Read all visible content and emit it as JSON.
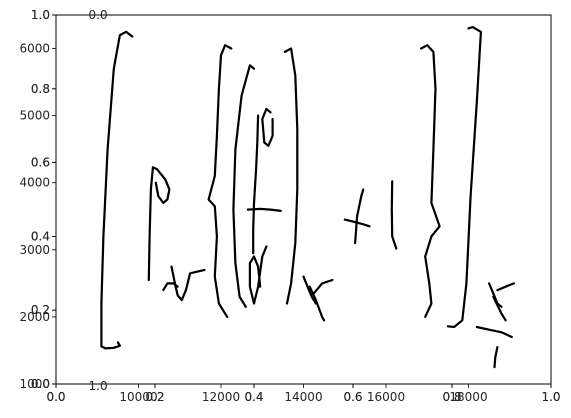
{
  "chart_data": {
    "type": "line",
    "description_visible": "handwritten math expression strokes on overlapping matplotlib axes",
    "axes": [
      {
        "id": "main",
        "xlim": [
          8000,
          20000
        ],
        "ylim": [
          1000,
          6500
        ],
        "xticks": [
          10000,
          12000,
          14000,
          16000,
          18000
        ],
        "xtick_labels": [
          "10000",
          "12000",
          "14000",
          "16000",
          "18000"
        ],
        "yticks": [
          1000,
          2000,
          3000,
          4000,
          5000,
          6000
        ],
        "ytick_labels": [
          "1000",
          "2000",
          "3000",
          "4000",
          "5000",
          "6000"
        ]
      },
      {
        "id": "overlay-a",
        "xlim": [
          0,
          1
        ],
        "ylim": [
          0,
          1
        ],
        "xticks": [
          0.0,
          0.2,
          0.4,
          0.6,
          0.8,
          1.0
        ],
        "xtick_labels": [
          "0.0",
          "0.2",
          "0.4",
          "0.6",
          "0.8",
          "1.0"
        ],
        "yticks": [
          0.0,
          0.2,
          0.4,
          0.6,
          0.8,
          1.0
        ],
        "ytick_labels": [
          "0.0",
          "0.2",
          "0.4",
          "0.6",
          "0.8",
          "1.0"
        ]
      },
      {
        "id": "overlay-b",
        "xlim": [
          0,
          1
        ],
        "ylim": [
          0,
          1
        ],
        "xticks": [
          0.0,
          0.2,
          0.4,
          0.6,
          0.8,
          1.0
        ],
        "xtick_labels": [
          "0.0",
          "0.2",
          "0.4",
          "0.6",
          "0.8",
          "1.0"
        ],
        "yticks": [
          0.0,
          0.2,
          0.4,
          0.6,
          0.8,
          1.0
        ],
        "ytick_labels": [
          "0.0",
          "0.2",
          "0.4",
          "0.6",
          "0.8",
          "1.0"
        ]
      }
    ],
    "stray_labels": [
      "0.0",
      "1.0"
    ],
    "strokes": [
      {
        "name": "outer-left-bracket",
        "points": [
          [
            9850,
            6180
          ],
          [
            9700,
            6250
          ],
          [
            9550,
            6200
          ],
          [
            9400,
            5700
          ],
          [
            9250,
            4500
          ],
          [
            9150,
            3200
          ],
          [
            9100,
            2200
          ],
          [
            9100,
            1560
          ],
          [
            9200,
            1530
          ],
          [
            9400,
            1540
          ],
          [
            9550,
            1570
          ],
          [
            9500,
            1620
          ]
        ]
      },
      {
        "name": "rho-stem",
        "points": [
          [
            10250,
            2550
          ],
          [
            10270,
            3200
          ],
          [
            10300,
            3900
          ],
          [
            10350,
            4230
          ],
          [
            10450,
            4200
          ],
          [
            10650,
            4050
          ],
          [
            10750,
            3900
          ],
          [
            10700,
            3750
          ],
          [
            10600,
            3700
          ],
          [
            10480,
            3800
          ],
          [
            10420,
            4000
          ]
        ]
      },
      {
        "name": "subscript-r-1a",
        "points": [
          [
            10600,
            2400
          ],
          [
            10700,
            2500
          ],
          [
            10850,
            2500
          ],
          [
            10950,
            2450
          ]
        ]
      },
      {
        "name": "subscript-r-1b",
        "points": [
          [
            10800,
            2750
          ],
          [
            10850,
            2600
          ],
          [
            10900,
            2450
          ],
          [
            10950,
            2320
          ],
          [
            11050,
            2250
          ],
          [
            11150,
            2400
          ],
          [
            11250,
            2650
          ],
          [
            11600,
            2700
          ]
        ]
      },
      {
        "name": "left-brace",
        "points": [
          [
            12250,
            6000
          ],
          [
            12100,
            6050
          ],
          [
            12000,
            5900
          ],
          [
            11950,
            5400
          ],
          [
            11900,
            4700
          ],
          [
            11850,
            4100
          ],
          [
            11700,
            3750
          ],
          [
            11850,
            3650
          ],
          [
            11900,
            3200
          ],
          [
            11850,
            2600
          ],
          [
            11950,
            2200
          ],
          [
            12100,
            2050
          ],
          [
            12150,
            2000
          ]
        ]
      },
      {
        "name": "left-paren",
        "points": [
          [
            12800,
            5700
          ],
          [
            12700,
            5750
          ],
          [
            12500,
            5300
          ],
          [
            12350,
            4500
          ],
          [
            12300,
            3600
          ],
          [
            12350,
            2800
          ],
          [
            12450,
            2300
          ],
          [
            12600,
            2150
          ]
        ]
      },
      {
        "name": "inner-l",
        "points": [
          [
            12900,
            5000
          ],
          [
            12880,
            4600
          ],
          [
            12850,
            4200
          ],
          [
            12800,
            3700
          ],
          [
            12780,
            3300
          ],
          [
            12780,
            2950
          ]
        ]
      },
      {
        "name": "inner-loop",
        "points": [
          [
            13200,
            5050
          ],
          [
            13100,
            5100
          ],
          [
            13000,
            4950
          ],
          [
            13050,
            4600
          ],
          [
            13150,
            4550
          ],
          [
            13250,
            4700
          ],
          [
            13250,
            4950
          ]
        ]
      },
      {
        "name": "fraction-bar",
        "points": [
          [
            12650,
            3600
          ],
          [
            12950,
            3610
          ],
          [
            13200,
            3600
          ],
          [
            13450,
            3580
          ]
        ]
      },
      {
        "name": "sigma-loop",
        "points": [
          [
            13100,
            3050
          ],
          [
            13000,
            2900
          ],
          [
            12900,
            2450
          ],
          [
            12800,
            2200
          ],
          [
            12700,
            2450
          ],
          [
            12700,
            2800
          ],
          [
            12800,
            2900
          ],
          [
            12900,
            2750
          ],
          [
            12950,
            2450
          ]
        ]
      },
      {
        "name": "right-paren",
        "points": [
          [
            13550,
            5950
          ],
          [
            13700,
            6000
          ],
          [
            13800,
            5600
          ],
          [
            13850,
            4800
          ],
          [
            13850,
            3900
          ],
          [
            13800,
            3100
          ],
          [
            13700,
            2500
          ],
          [
            13600,
            2200
          ]
        ]
      },
      {
        "name": "subscript-r-2a",
        "points": [
          [
            14000,
            2600
          ],
          [
            14100,
            2450
          ],
          [
            14200,
            2300
          ],
          [
            14300,
            2200
          ]
        ]
      },
      {
        "name": "subscript-r-2b",
        "points": [
          [
            14150,
            2450
          ],
          [
            14300,
            2250
          ],
          [
            14450,
            2000
          ],
          [
            14500,
            1950
          ]
        ]
      },
      {
        "name": "subscript-r-2c",
        "points": [
          [
            14250,
            2350
          ],
          [
            14450,
            2500
          ],
          [
            14700,
            2550
          ]
        ]
      },
      {
        "name": "plus-vertical",
        "points": [
          [
            15250,
            3100
          ],
          [
            15300,
            3500
          ],
          [
            15400,
            3800
          ],
          [
            15450,
            3900
          ]
        ]
      },
      {
        "name": "plus-horizontal",
        "points": [
          [
            15000,
            3450
          ],
          [
            15200,
            3420
          ],
          [
            15450,
            3380
          ],
          [
            15600,
            3350
          ]
        ]
      },
      {
        "name": "one-stroke",
        "points": [
          [
            16150,
            4020
          ],
          [
            16140,
            3600
          ],
          [
            16150,
            3200
          ],
          [
            16250,
            3020
          ]
        ]
      },
      {
        "name": "right-brace",
        "points": [
          [
            16850,
            6000
          ],
          [
            17000,
            6050
          ],
          [
            17150,
            5950
          ],
          [
            17200,
            5400
          ],
          [
            17150,
            4500
          ],
          [
            17100,
            3700
          ],
          [
            17300,
            3350
          ],
          [
            17100,
            3200
          ],
          [
            16950,
            2900
          ],
          [
            17050,
            2500
          ],
          [
            17100,
            2200
          ],
          [
            16950,
            2000
          ]
        ]
      },
      {
        "name": "outer-right-bracket",
        "points": [
          [
            18000,
            6300
          ],
          [
            18100,
            6320
          ],
          [
            18300,
            6250
          ],
          [
            18200,
            5200
          ],
          [
            18050,
            3800
          ],
          [
            17950,
            2500
          ],
          [
            17850,
            1950
          ],
          [
            17650,
            1850
          ],
          [
            17500,
            1860
          ]
        ]
      },
      {
        "name": "subscript-r-3a",
        "points": [
          [
            18500,
            2500
          ],
          [
            18600,
            2350
          ],
          [
            18700,
            2200
          ],
          [
            18800,
            2150
          ]
        ]
      },
      {
        "name": "subscript-r-3b",
        "points": [
          [
            18600,
            2300
          ],
          [
            18800,
            2050
          ],
          [
            18900,
            1950
          ]
        ]
      },
      {
        "name": "subscript-r-3c",
        "points": [
          [
            18700,
            2400
          ],
          [
            18900,
            2450
          ],
          [
            19100,
            2500
          ]
        ]
      },
      {
        "name": "underscore-bar",
        "points": [
          [
            18200,
            1850
          ],
          [
            18500,
            1810
          ],
          [
            18800,
            1770
          ],
          [
            19050,
            1700
          ]
        ]
      },
      {
        "name": "underscore-tick",
        "points": [
          [
            18700,
            1550
          ],
          [
            18650,
            1400
          ],
          [
            18630,
            1250
          ]
        ]
      }
    ]
  }
}
